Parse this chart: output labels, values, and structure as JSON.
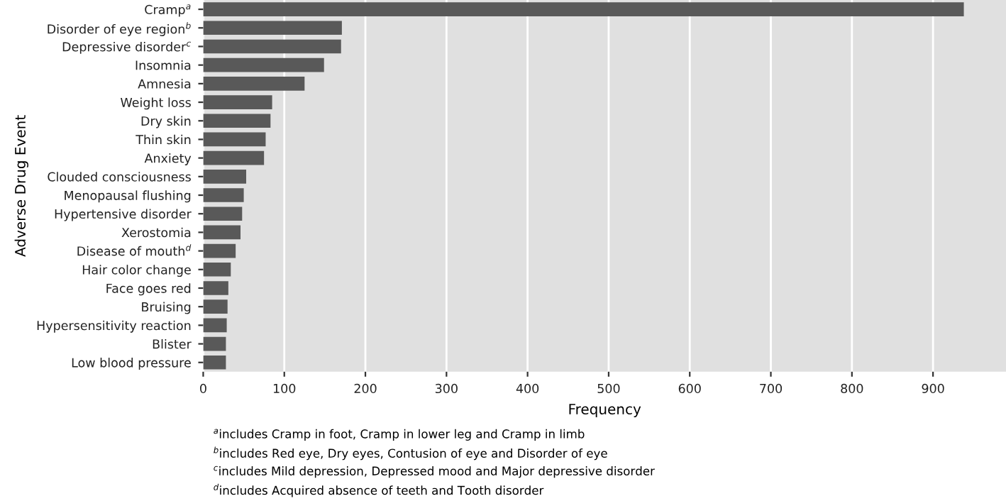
{
  "chart_data": {
    "type": "bar",
    "orientation": "horizontal",
    "categories": [
      "Cramp$^{a}$",
      "Disorder of eye region$^{b}$",
      "Depressive disorder$^{c}$",
      "Insomnia",
      "Amnesia",
      "Weight loss",
      "Dry skin",
      "Thin skin",
      "Anxiety",
      "Clouded consciousness",
      "Menopausal flushing",
      "Hypertensive disorder",
      "Xerostomia",
      "Disease of mouth$^{d}$",
      "Hair color change",
      "Face goes red",
      "Bruising",
      "Hypersensitivity reaction",
      "Blister",
      "Low blood pressure"
    ],
    "values": [
      938,
      171,
      170,
      149,
      125,
      85,
      83,
      77,
      75,
      53,
      50,
      48,
      46,
      40,
      34,
      31,
      30,
      29,
      28,
      28
    ],
    "color": "#595959",
    "xlabel": "Frequency",
    "ylabel": "Adverse Drug Event",
    "xlim": [
      0,
      990
    ],
    "xticks": [
      0,
      100,
      200,
      300,
      400,
      500,
      600,
      700,
      800,
      900
    ],
    "grid": "x",
    "legend": false,
    "annotations": [
      "$^{a}$includes Cramp in foot, Cramp in lower leg and Cramp in limb",
      "$^{b}$includes Red eye, Dry eyes, Contusion of eye and Disorder of eye",
      "$^{c}$includes Mild depression, Depressed mood and Major depressive disorder",
      "$^{d}$includes Acquired absence of teeth and Tooth disorder"
    ]
  }
}
